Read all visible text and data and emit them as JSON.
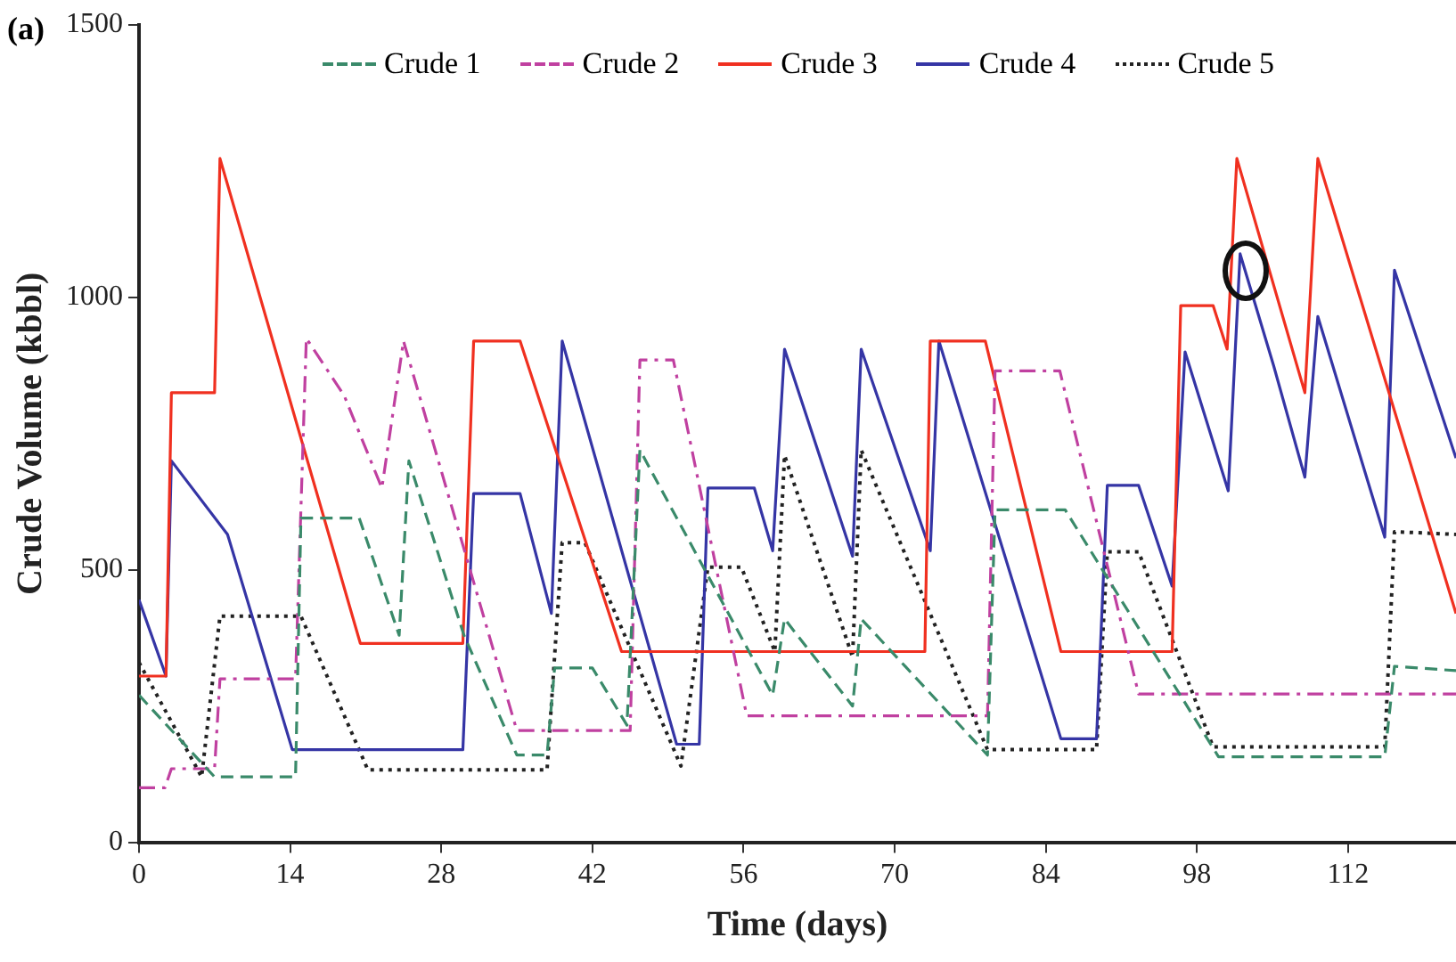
{
  "chart_data": {
    "type": "line",
    "xlabel": "Time (days)",
    "ylabel": "Crude Volume (kbbl)",
    "annotations": [
      "(a)"
    ],
    "xlim": [
      0,
      122
    ],
    "xticks": [
      0,
      14,
      28,
      42,
      56,
      70,
      84,
      98,
      112
    ],
    "ylim": [
      0,
      1500
    ],
    "yticks": [
      0,
      500,
      1000,
      1500
    ],
    "legend": "top",
    "marker": "none",
    "grid": false,
    "series": [
      {
        "name": "Crude 1",
        "color": "#3a8a6a",
        "line_style": "dashed",
        "x": [
          0,
          7,
          14.5,
          15,
          20.4,
          24.1,
          25,
          30.1,
          35,
          37.8,
          38.5,
          42,
          45.2,
          46.4,
          58.7,
          59.8,
          66.1,
          66.9,
          78.6,
          79.3,
          85.8,
          100,
          115.4,
          116.3,
          122
        ],
        "values": [
          270,
          120,
          120,
          595,
          595,
          380,
          700,
          380,
          160,
          160,
          320,
          320,
          215,
          720,
          270,
          410,
          250,
          410,
          160,
          610,
          610,
          157,
          157,
          323,
          315
        ]
      },
      {
        "name": "Crude 2",
        "color": "#c040a0",
        "line_style": "dashdot",
        "x": [
          0,
          2.4,
          3,
          7,
          7.5,
          14.5,
          15.5,
          19,
          22.5,
          24.5,
          35,
          45.5,
          46.4,
          49.5,
          56.3,
          78.6,
          79.3,
          85.3,
          92.6,
          122
        ],
        "values": [
          100,
          100,
          135,
          135,
          300,
          300,
          925,
          820,
          650,
          920,
          205,
          205,
          885,
          885,
          232,
          232,
          865,
          865,
          272,
          272
        ]
      },
      {
        "name": "Crude 3",
        "color": "#f03020",
        "line_style": "solid",
        "x": [
          0,
          2.5,
          3,
          7,
          7.5,
          20.5,
          30,
          31,
          35.3,
          44.7,
          72.8,
          73.3,
          78.4,
          85.4,
          95.7,
          96.5,
          99.5,
          100.8,
          101.7,
          108,
          109.2,
          122
        ],
        "values": [
          305,
          305,
          825,
          825,
          1255,
          365,
          365,
          920,
          920,
          350,
          350,
          920,
          920,
          350,
          350,
          985,
          985,
          905,
          1255,
          825,
          1255,
          420
        ]
      },
      {
        "name": "Crude 4",
        "color": "#3535a5",
        "line_style": "solid",
        "x": [
          0,
          2.5,
          3,
          8.2,
          14.2,
          30,
          31,
          35.3,
          38.2,
          39.2,
          49.8,
          51.9,
          52.7,
          57,
          58.7,
          59.8,
          66.1,
          66.9,
          73.3,
          74.1,
          85.4,
          88.7,
          89.7,
          92.6,
          95.7,
          96.9,
          100.9,
          102,
          105.1,
          108,
          109.2,
          115.4,
          116.3,
          122
        ],
        "values": [
          445,
          305,
          700,
          565,
          170,
          170,
          640,
          640,
          420,
          920,
          180,
          180,
          650,
          650,
          535,
          905,
          525,
          905,
          535,
          920,
          190,
          190,
          655,
          655,
          470,
          900,
          645,
          1080,
          875,
          670,
          965,
          560,
          1050,
          705
        ]
      },
      {
        "name": "Crude 5",
        "color": "#222222",
        "line_style": "dotted",
        "x": [
          0,
          5.8,
          7.5,
          15,
          21.2,
          37.8,
          39.2,
          41.3,
          50.2,
          52.7,
          55.8,
          58.9,
          59.8,
          66.1,
          66.9,
          78.6,
          88.7,
          89.7,
          92.6,
          99.5,
          115.4,
          116.3,
          122
        ],
        "values": [
          330,
          120,
          415,
          415,
          133,
          133,
          550,
          550,
          140,
          505,
          505,
          350,
          710,
          340,
          720,
          170,
          170,
          533,
          533,
          175,
          175,
          570,
          565
        ]
      }
    ]
  }
}
